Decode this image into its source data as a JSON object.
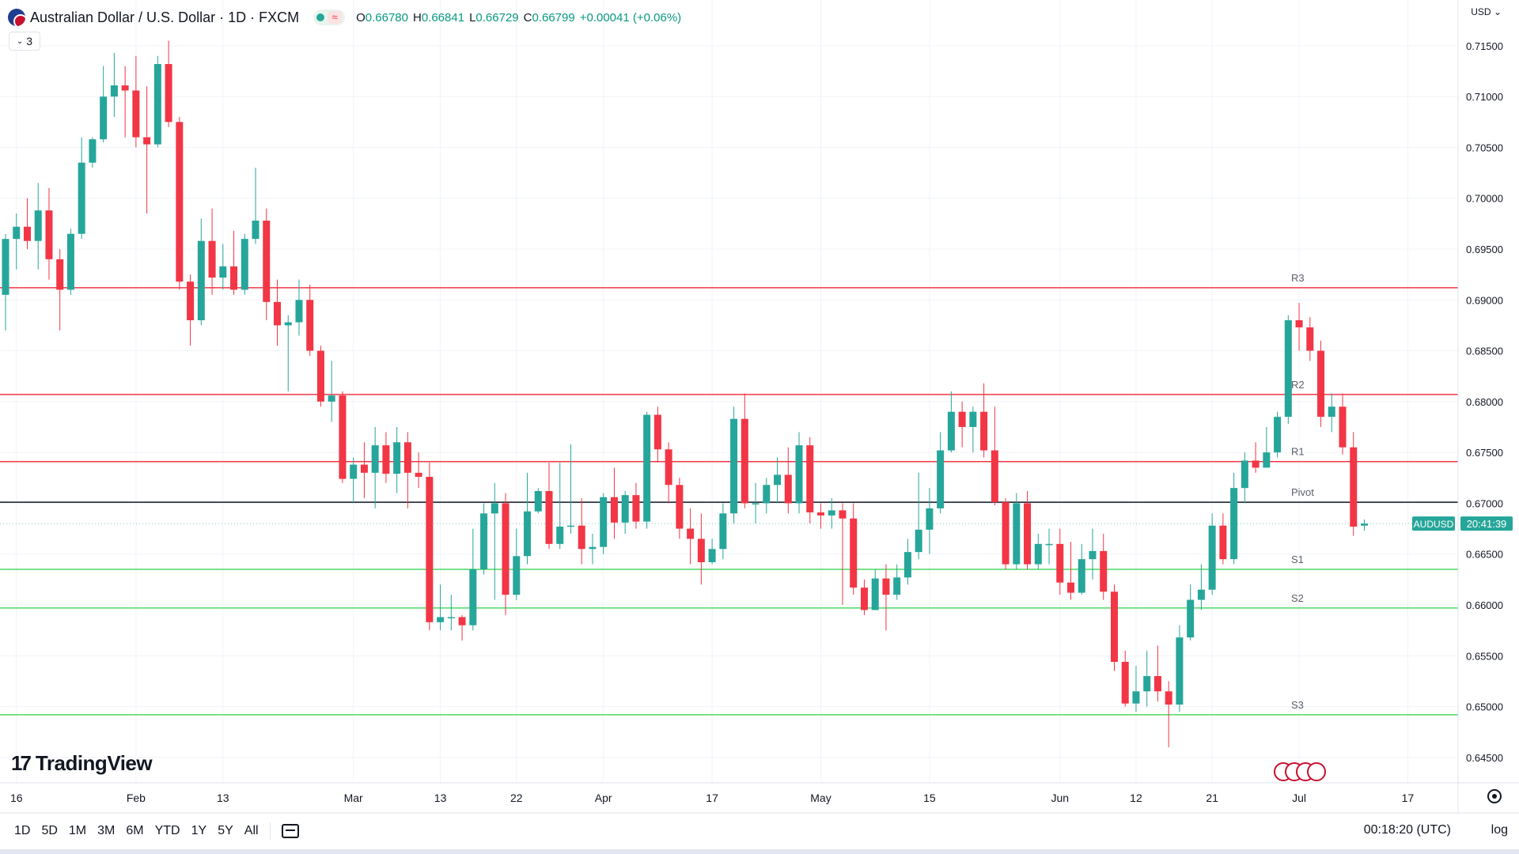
{
  "header": {
    "symbol_title": "Australian Dollar / U.S. Dollar · 1D · FXCM",
    "ohlc": {
      "open_label": "O",
      "open": "0.66780",
      "high_label": "H",
      "high": "0.66841",
      "low_label": "L",
      "low": "0.66729",
      "close_label": "C",
      "close": "0.66799",
      "change": "+0.00041 (+0.06%)"
    },
    "indicator_count": "3",
    "currency": "USD"
  },
  "logo_text": "TradingView",
  "bottom": {
    "timeframes": [
      "1D",
      "5D",
      "1M",
      "3M",
      "6M",
      "YTD",
      "1Y",
      "5Y",
      "All"
    ],
    "clock": "00:18:20 (UTC)",
    "log": "log"
  },
  "chart_data": {
    "type": "candlestick",
    "symbol_label": "AUDUSD",
    "price_tag": "20:41:39",
    "ylim": [
      0.6425,
      0.7195
    ],
    "y_ticks": [
      "0.71500",
      "0.71000",
      "0.70500",
      "0.70000",
      "0.69500",
      "0.69000",
      "0.68500",
      "0.68000",
      "0.67500",
      "0.67000",
      "0.66500",
      "0.66000",
      "0.65500",
      "0.65000",
      "0.64500"
    ],
    "x_ticks": [
      {
        "label": "16",
        "i": 1
      },
      {
        "label": "Feb",
        "i": 12
      },
      {
        "label": "13",
        "i": 20
      },
      {
        "label": "Mar",
        "i": 32
      },
      {
        "label": "13",
        "i": 40
      },
      {
        "label": "22",
        "i": 47
      },
      {
        "label": "Apr",
        "i": 55
      },
      {
        "label": "17",
        "i": 65
      },
      {
        "label": "May",
        "i": 75
      },
      {
        "label": "15",
        "i": 85
      },
      {
        "label": "Jun",
        "i": 97
      },
      {
        "label": "12",
        "i": 104
      },
      {
        "label": "21",
        "i": 111
      },
      {
        "label": "Jul",
        "i": 119
      },
      {
        "label": "17",
        "i": 129
      }
    ],
    "levels": [
      {
        "name": "R3",
        "value": 0.6912,
        "color": "#f23645"
      },
      {
        "name": "R2",
        "value": 0.6807,
        "color": "#f23645"
      },
      {
        "name": "R1",
        "value": 0.6741,
        "color": "#f23645"
      },
      {
        "name": "Pivot",
        "value": 0.6701,
        "color": "#131722"
      },
      {
        "name": "S1",
        "value": 0.6635,
        "color": "#4cd964"
      },
      {
        "name": "S2",
        "value": 0.6597,
        "color": "#4cd964"
      },
      {
        "name": "S3",
        "value": 0.6492,
        "color": "#4cd964"
      }
    ],
    "up_color": "#26a69a",
    "down_color": "#f23645",
    "candles": [
      [
        0.6905,
        0.696,
        0.687,
        0.6965
      ],
      [
        0.696,
        0.6972,
        0.693,
        0.6985
      ],
      [
        0.6972,
        0.6958,
        0.695,
        0.7
      ],
      [
        0.6958,
        0.6988,
        0.693,
        0.7015
      ],
      [
        0.6988,
        0.694,
        0.692,
        0.701
      ],
      [
        0.694,
        0.691,
        0.687,
        0.695
      ],
      [
        0.691,
        0.6965,
        0.6905,
        0.697
      ],
      [
        0.6965,
        0.7035,
        0.696,
        0.706
      ],
      [
        0.7035,
        0.7058,
        0.703,
        0.706
      ],
      [
        0.7058,
        0.71,
        0.7055,
        0.713
      ],
      [
        0.71,
        0.7111,
        0.708,
        0.7143
      ],
      [
        0.7111,
        0.7106,
        0.706,
        0.713
      ],
      [
        0.7106,
        0.706,
        0.705,
        0.714
      ],
      [
        0.706,
        0.7053,
        0.6985,
        0.711
      ],
      [
        0.7053,
        0.7132,
        0.705,
        0.714
      ],
      [
        0.7132,
        0.7075,
        0.707,
        0.7155
      ],
      [
        0.7075,
        0.6918,
        0.691,
        0.708
      ],
      [
        0.6918,
        0.688,
        0.6855,
        0.6925
      ],
      [
        0.688,
        0.6958,
        0.6875,
        0.698
      ],
      [
        0.6958,
        0.6922,
        0.6905,
        0.699
      ],
      [
        0.6922,
        0.6933,
        0.691,
        0.6955
      ],
      [
        0.6933,
        0.691,
        0.6905,
        0.6968
      ],
      [
        0.691,
        0.696,
        0.6905,
        0.6965
      ],
      [
        0.696,
        0.6978,
        0.6955,
        0.703
      ],
      [
        0.6978,
        0.6898,
        0.688,
        0.699
      ],
      [
        0.6898,
        0.6875,
        0.6855,
        0.692
      ],
      [
        0.6875,
        0.6878,
        0.681,
        0.6885
      ],
      [
        0.6878,
        0.69,
        0.6865,
        0.692
      ],
      [
        0.69,
        0.685,
        0.6845,
        0.6915
      ],
      [
        0.685,
        0.68,
        0.6795,
        0.6855
      ],
      [
        0.68,
        0.6806,
        0.678,
        0.684
      ],
      [
        0.6806,
        0.6724,
        0.672,
        0.681
      ],
      [
        0.6724,
        0.6738,
        0.67,
        0.6745
      ],
      [
        0.6738,
        0.673,
        0.6705,
        0.676
      ],
      [
        0.673,
        0.6757,
        0.6695,
        0.6775
      ],
      [
        0.6757,
        0.6729,
        0.672,
        0.677
      ],
      [
        0.6729,
        0.676,
        0.671,
        0.6775
      ],
      [
        0.676,
        0.673,
        0.6695,
        0.677
      ],
      [
        0.673,
        0.6726,
        0.6715,
        0.675
      ],
      [
        0.6726,
        0.6583,
        0.6575,
        0.674
      ],
      [
        0.6583,
        0.6588,
        0.6575,
        0.662
      ],
      [
        0.6588,
        0.6588,
        0.6575,
        0.661
      ],
      [
        0.6588,
        0.658,
        0.6565,
        0.659
      ],
      [
        0.658,
        0.6635,
        0.6575,
        0.6675
      ],
      [
        0.6635,
        0.669,
        0.663,
        0.67
      ],
      [
        0.669,
        0.67,
        0.6605,
        0.672
      ],
      [
        0.67,
        0.661,
        0.659,
        0.671
      ],
      [
        0.661,
        0.6648,
        0.6605,
        0.6675
      ],
      [
        0.6648,
        0.6692,
        0.664,
        0.673
      ],
      [
        0.6692,
        0.6712,
        0.669,
        0.6715
      ],
      [
        0.6712,
        0.666,
        0.6655,
        0.674
      ],
      [
        0.666,
        0.6677,
        0.6655,
        0.674
      ],
      [
        0.6677,
        0.6678,
        0.667,
        0.6758
      ],
      [
        0.6678,
        0.6655,
        0.664,
        0.6705
      ],
      [
        0.6655,
        0.6657,
        0.664,
        0.667
      ],
      [
        0.6657,
        0.6706,
        0.665,
        0.671
      ],
      [
        0.6706,
        0.6681,
        0.6665,
        0.6735
      ],
      [
        0.6681,
        0.6708,
        0.667,
        0.6712
      ],
      [
        0.6708,
        0.6682,
        0.6675,
        0.672
      ],
      [
        0.6682,
        0.6787,
        0.6675,
        0.679
      ],
      [
        0.6787,
        0.6753,
        0.674,
        0.6795
      ],
      [
        0.6753,
        0.6718,
        0.67,
        0.676
      ],
      [
        0.6718,
        0.6675,
        0.6665,
        0.6725
      ],
      [
        0.6675,
        0.6665,
        0.664,
        0.6695
      ],
      [
        0.6665,
        0.6642,
        0.662,
        0.669
      ],
      [
        0.6642,
        0.6655,
        0.664,
        0.6665
      ],
      [
        0.6655,
        0.669,
        0.6645,
        0.67
      ],
      [
        0.669,
        0.6783,
        0.668,
        0.6795
      ],
      [
        0.6783,
        0.67,
        0.6695,
        0.6808
      ],
      [
        0.67,
        0.67,
        0.668,
        0.672
      ],
      [
        0.67,
        0.6718,
        0.669,
        0.6725
      ],
      [
        0.6718,
        0.6728,
        0.67,
        0.6745
      ],
      [
        0.6728,
        0.67,
        0.669,
        0.6755
      ],
      [
        0.67,
        0.6757,
        0.669,
        0.677
      ],
      [
        0.6757,
        0.6691,
        0.668,
        0.6765
      ],
      [
        0.6691,
        0.6688,
        0.6675,
        0.67
      ],
      [
        0.6688,
        0.6693,
        0.6675,
        0.6705
      ],
      [
        0.6693,
        0.6685,
        0.66,
        0.67
      ],
      [
        0.6685,
        0.6617,
        0.661,
        0.67
      ],
      [
        0.6617,
        0.6595,
        0.659,
        0.6625
      ],
      [
        0.6595,
        0.6626,
        0.6595,
        0.6635
      ],
      [
        0.6626,
        0.661,
        0.6575,
        0.664
      ],
      [
        0.661,
        0.6627,
        0.6605,
        0.664
      ],
      [
        0.6627,
        0.6652,
        0.662,
        0.6665
      ],
      [
        0.6652,
        0.6674,
        0.6645,
        0.673
      ],
      [
        0.6674,
        0.6695,
        0.665,
        0.6715
      ],
      [
        0.6695,
        0.6752,
        0.669,
        0.677
      ],
      [
        0.6752,
        0.679,
        0.675,
        0.681
      ],
      [
        0.679,
        0.6775,
        0.6755,
        0.68
      ],
      [
        0.6775,
        0.679,
        0.675,
        0.6795
      ],
      [
        0.679,
        0.6752,
        0.6745,
        0.6818
      ],
      [
        0.6752,
        0.6701,
        0.6698,
        0.6795
      ],
      [
        0.6701,
        0.664,
        0.6635,
        0.6705
      ],
      [
        0.664,
        0.67,
        0.6635,
        0.671
      ],
      [
        0.67,
        0.664,
        0.6635,
        0.6712
      ],
      [
        0.664,
        0.666,
        0.6635,
        0.667
      ],
      [
        0.666,
        0.666,
        0.664,
        0.6675
      ],
      [
        0.666,
        0.6622,
        0.661,
        0.6675
      ],
      [
        0.6622,
        0.6612,
        0.6605,
        0.6662
      ],
      [
        0.6612,
        0.6645,
        0.661,
        0.666
      ],
      [
        0.6645,
        0.6653,
        0.6625,
        0.6675
      ],
      [
        0.6653,
        0.6613,
        0.6605,
        0.667
      ],
      [
        0.6613,
        0.6544,
        0.6535,
        0.662
      ],
      [
        0.6544,
        0.6503,
        0.65,
        0.6555
      ],
      [
        0.6503,
        0.6515,
        0.6495,
        0.654
      ],
      [
        0.6515,
        0.653,
        0.65,
        0.6555
      ],
      [
        0.653,
        0.6515,
        0.6505,
        0.656
      ],
      [
        0.6515,
        0.6502,
        0.646,
        0.6525
      ],
      [
        0.6502,
        0.6568,
        0.6495,
        0.658
      ],
      [
        0.6568,
        0.6605,
        0.6565,
        0.662
      ],
      [
        0.6605,
        0.6615,
        0.6595,
        0.664
      ],
      [
        0.6615,
        0.6678,
        0.661,
        0.669
      ],
      [
        0.6678,
        0.6645,
        0.664,
        0.669
      ],
      [
        0.6645,
        0.6715,
        0.664,
        0.673
      ],
      [
        0.6715,
        0.6742,
        0.67,
        0.675
      ],
      [
        0.6742,
        0.6735,
        0.673,
        0.676
      ],
      [
        0.6735,
        0.675,
        0.6735,
        0.6775
      ],
      [
        0.675,
        0.6785,
        0.6745,
        0.679
      ],
      [
        0.6785,
        0.688,
        0.6778,
        0.6885
      ],
      [
        0.688,
        0.6873,
        0.685,
        0.6897
      ],
      [
        0.6873,
        0.685,
        0.684,
        0.6883
      ],
      [
        0.685,
        0.6785,
        0.6775,
        0.686
      ],
      [
        0.6785,
        0.6795,
        0.677,
        0.6808
      ],
      [
        0.6795,
        0.6755,
        0.6748,
        0.6808
      ],
      [
        0.6755,
        0.6677,
        0.6668,
        0.677
      ],
      [
        0.6678,
        0.668,
        0.6673,
        0.6684
      ]
    ]
  }
}
